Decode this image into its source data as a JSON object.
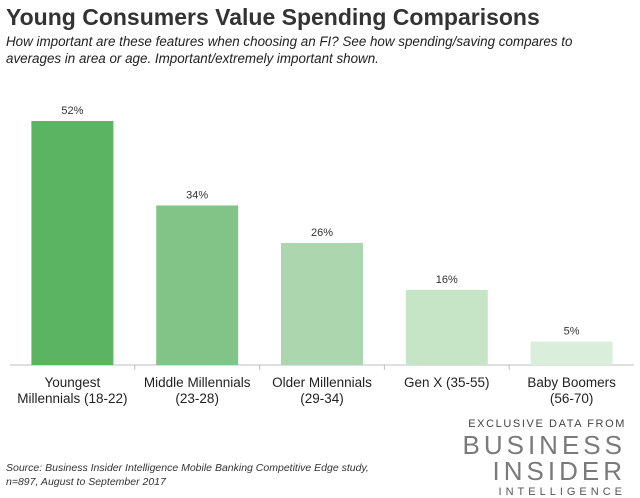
{
  "title": "Young Consumers Value Spending Comparisons",
  "subtitle": "How important are these features when choosing an FI? See how spending/saving compares to averages in area or age. Important/extremely important shown.",
  "source": {
    "line1": "Source: Business Insider Intelligence Mobile Banking Competitive Edge study,",
    "line2": "n=897, August to September 2017"
  },
  "branding": {
    "line1": "EXCLUSIVE DATA FROM",
    "line2": "BUSINESS",
    "line3": "INSIDER",
    "line4": "INTELLIGENCE"
  },
  "chart_data": {
    "type": "bar",
    "categories": [
      [
        "Youngest",
        "Millennials (18-22)"
      ],
      [
        "Middle Millennials",
        "(23-28)"
      ],
      [
        "Older Millennials",
        "(29-34)"
      ],
      [
        "Gen X (35-55)"
      ],
      [
        "Baby Boomers",
        "(56-70)"
      ]
    ],
    "values": [
      52,
      34,
      26,
      16,
      5
    ],
    "data_labels": [
      "52%",
      "34%",
      "26%",
      "16%",
      "5%"
    ],
    "colors": [
      "#5bb462",
      "#82c487",
      "#acd7ae",
      "#c6e5c7",
      "#daefdb"
    ],
    "ylim": [
      0,
      52
    ],
    "grid": false,
    "legend": "none"
  }
}
